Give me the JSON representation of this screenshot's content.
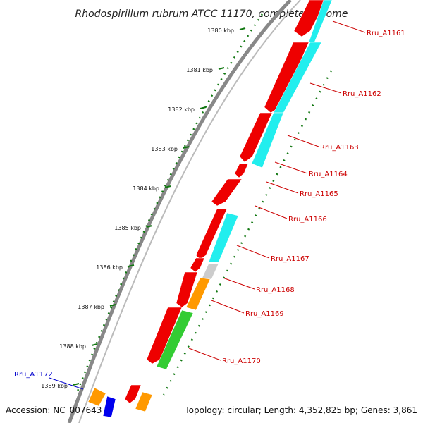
{
  "title": "Rhodospirillum rubrum ATCC 11170, complete genome",
  "footer": {
    "accession": "Accession: NC_007643",
    "summary": "Topology: circular; Length: 4,352,825 bp; Genes: 3,861"
  },
  "colors": {
    "forward": "#ee0000",
    "reverse_cyan": "#22eeee",
    "orange": "#ff9900",
    "green": "#33cc33",
    "grey": "#cccccc",
    "blue": "#0000ee",
    "label_red": "#cc0000",
    "label_blue": "#0000cc",
    "ruler": "#117711"
  },
  "ruler_ticks": [
    "1380 kbp",
    "1381 kbp",
    "1382 kbp",
    "1383 kbp",
    "1384 kbp",
    "1385 kbp",
    "1386 kbp",
    "1387 kbp",
    "1388 kbp",
    "1389 kbp"
  ],
  "gene_labels": [
    {
      "text": "Rru_A1161",
      "color": "red"
    },
    {
      "text": "Rru_A1162",
      "color": "red"
    },
    {
      "text": "Rru_A1163",
      "color": "red"
    },
    {
      "text": "Rru_A1164",
      "color": "red"
    },
    {
      "text": "Rru_A1165",
      "color": "red"
    },
    {
      "text": "Rru_A1166",
      "color": "red"
    },
    {
      "text": "Rru_A1167",
      "color": "red"
    },
    {
      "text": "Rru_A1168",
      "color": "red"
    },
    {
      "text": "Rru_A1169",
      "color": "red"
    },
    {
      "text": "Rru_A1170",
      "color": "red"
    },
    {
      "text": "Rru_A1172",
      "color": "blue"
    }
  ]
}
